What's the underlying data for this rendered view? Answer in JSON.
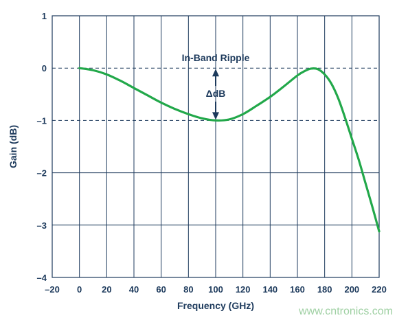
{
  "chart_data": {
    "type": "line",
    "title": "",
    "xlabel": "Frequency (GHz)",
    "ylabel": "Gain (dB)",
    "xlim": [
      -20,
      220
    ],
    "ylim": [
      -4,
      1
    ],
    "xticks": [
      -20,
      0,
      20,
      40,
      60,
      80,
      100,
      120,
      140,
      160,
      180,
      200,
      220
    ],
    "xtick_labels": [
      "–20",
      "0",
      "20",
      "40",
      "60",
      "80",
      "100",
      "120",
      "140",
      "160",
      "180",
      "200",
      "220"
    ],
    "yticks": [
      1,
      0,
      -1,
      -2,
      -3,
      -4
    ],
    "ytick_labels": [
      "1",
      "0",
      "–1",
      "–2",
      "–3",
      "–4"
    ],
    "grid": true,
    "series": [
      {
        "color": "#22a84a",
        "x": [
          0,
          10,
          20,
          30,
          40,
          50,
          60,
          70,
          80,
          90,
          100,
          110,
          120,
          130,
          140,
          150,
          160,
          165,
          170,
          175,
          180,
          185,
          190,
          195,
          200,
          205,
          210,
          215,
          220
        ],
        "y": [
          0,
          -0.04,
          -0.12,
          -0.24,
          -0.38,
          -0.52,
          -0.66,
          -0.78,
          -0.88,
          -0.96,
          -1.0,
          -0.98,
          -0.88,
          -0.72,
          -0.55,
          -0.35,
          -0.14,
          -0.06,
          -0.01,
          -0.02,
          -0.12,
          -0.3,
          -0.58,
          -0.95,
          -1.35,
          -1.75,
          -2.2,
          -2.65,
          -3.12
        ]
      }
    ],
    "reference_lines": [
      {
        "y": 0,
        "style": "dashed"
      },
      {
        "y": -1,
        "style": "dashed"
      }
    ],
    "annotations": [
      {
        "text": "In-Band Ripple",
        "x": 100,
        "y": 0.2
      },
      {
        "text": "ΔdB",
        "x": 100,
        "y": -0.48
      }
    ]
  },
  "watermark": "www.cntronics.com"
}
